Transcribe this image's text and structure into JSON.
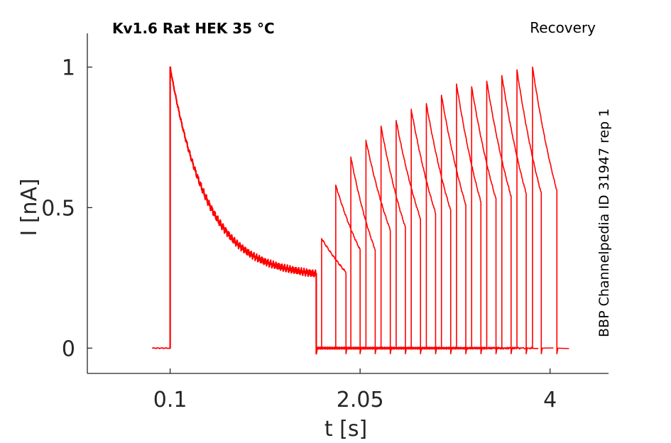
{
  "chart_data": {
    "type": "line",
    "title": "Kv1.6  Rat  HEK  35 °C",
    "protocol_label": "Recovery",
    "side_label": "BBP Channelpedia ID 31947 rep 1",
    "xlabel": "t [s]",
    "ylabel": "I [nA]",
    "xlim": [
      -0.75,
      4.6
    ],
    "ylim": [
      -0.09,
      1.12
    ],
    "x_ticks": [
      0.1,
      2.05,
      4
    ],
    "x_tick_labels": [
      "0.1",
      "2.05",
      "4"
    ],
    "y_ticks": [
      0,
      0.5,
      1
    ],
    "y_tick_labels": [
      "0",
      "0.5",
      "1"
    ],
    "grid": false,
    "colors": {
      "trace": "#ff0000",
      "axis": "#262626"
    },
    "conditioning_pulse": {
      "onset": 0.1,
      "offset": 1.6,
      "peak": 1.0,
      "end_value": 0.27,
      "decay_tau": 0.38,
      "steady_state": 0.25
    },
    "recovery_pulses": [
      {
        "onset": 1.655,
        "offset": 1.905,
        "peak": 0.39,
        "end": 0.27
      },
      {
        "onset": 1.8,
        "offset": 2.05,
        "peak": 0.58,
        "end": 0.35
      },
      {
        "onset": 1.955,
        "offset": 2.205,
        "peak": 0.68,
        "end": 0.35
      },
      {
        "onset": 2.11,
        "offset": 2.36,
        "peak": 0.74,
        "end": 0.42
      },
      {
        "onset": 2.265,
        "offset": 2.515,
        "peak": 0.79,
        "end": 0.43
      },
      {
        "onset": 2.42,
        "offset": 2.67,
        "peak": 0.81,
        "end": 0.46
      },
      {
        "onset": 2.575,
        "offset": 2.825,
        "peak": 0.85,
        "end": 0.48
      },
      {
        "onset": 2.73,
        "offset": 2.98,
        "peak": 0.87,
        "end": 0.49
      },
      {
        "onset": 2.885,
        "offset": 3.135,
        "peak": 0.9,
        "end": 0.51
      },
      {
        "onset": 3.04,
        "offset": 3.29,
        "peak": 0.94,
        "end": 0.52
      },
      {
        "onset": 3.195,
        "offset": 3.445,
        "peak": 0.93,
        "end": 0.53
      },
      {
        "onset": 3.35,
        "offset": 3.6,
        "peak": 0.95,
        "end": 0.54
      },
      {
        "onset": 3.505,
        "offset": 3.755,
        "peak": 0.97,
        "end": 0.55
      },
      {
        "onset": 3.66,
        "offset": 3.91,
        "peak": 0.99,
        "end": 0.55
      },
      {
        "onset": 3.82,
        "offset": 4.07,
        "peak": 1.0,
        "end": 0.56
      }
    ],
    "baseline": {
      "start": -0.08,
      "end": 4.3,
      "value": 0.0
    }
  }
}
